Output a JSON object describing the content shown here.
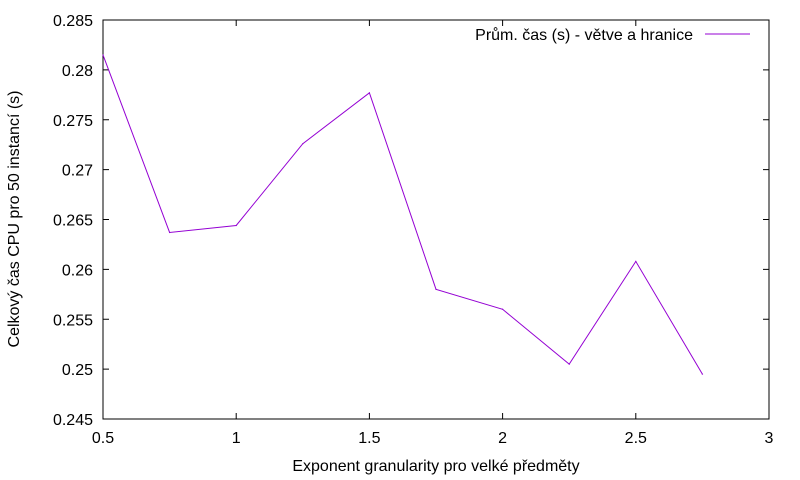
{
  "chart_data": {
    "type": "line",
    "xlabel": "Exponent granularity pro velké předměty",
    "ylabel": "Celkový čas CPU pro 50 instancí (s)",
    "xlim": [
      0.5,
      3
    ],
    "ylim": [
      0.245,
      0.285
    ],
    "x_ticks": [
      0.5,
      1,
      1.5,
      2,
      2.5,
      3
    ],
    "x_tick_labels": [
      "0.5",
      "1",
      "1.5",
      "2",
      "2.5",
      "3"
    ],
    "y_ticks": [
      0.245,
      0.25,
      0.255,
      0.26,
      0.265,
      0.27,
      0.275,
      0.28,
      0.285
    ],
    "y_tick_labels": [
      "0.245",
      "0.25",
      "0.255",
      "0.26",
      "0.265",
      "0.27",
      "0.275",
      "0.28",
      "0.285"
    ],
    "grid": false,
    "legend_position": "top-right",
    "series": [
      {
        "name": "Prům. čas (s) - větve a hranice",
        "color": "#9400d3",
        "x": [
          0.5,
          0.75,
          1.0,
          1.25,
          1.5,
          1.75,
          2.0,
          2.25,
          2.5,
          2.75
        ],
        "y": [
          0.2815,
          0.2637,
          0.2644,
          0.2726,
          0.2777,
          0.258,
          0.256,
          0.2505,
          0.2608,
          0.2495
        ]
      }
    ]
  }
}
